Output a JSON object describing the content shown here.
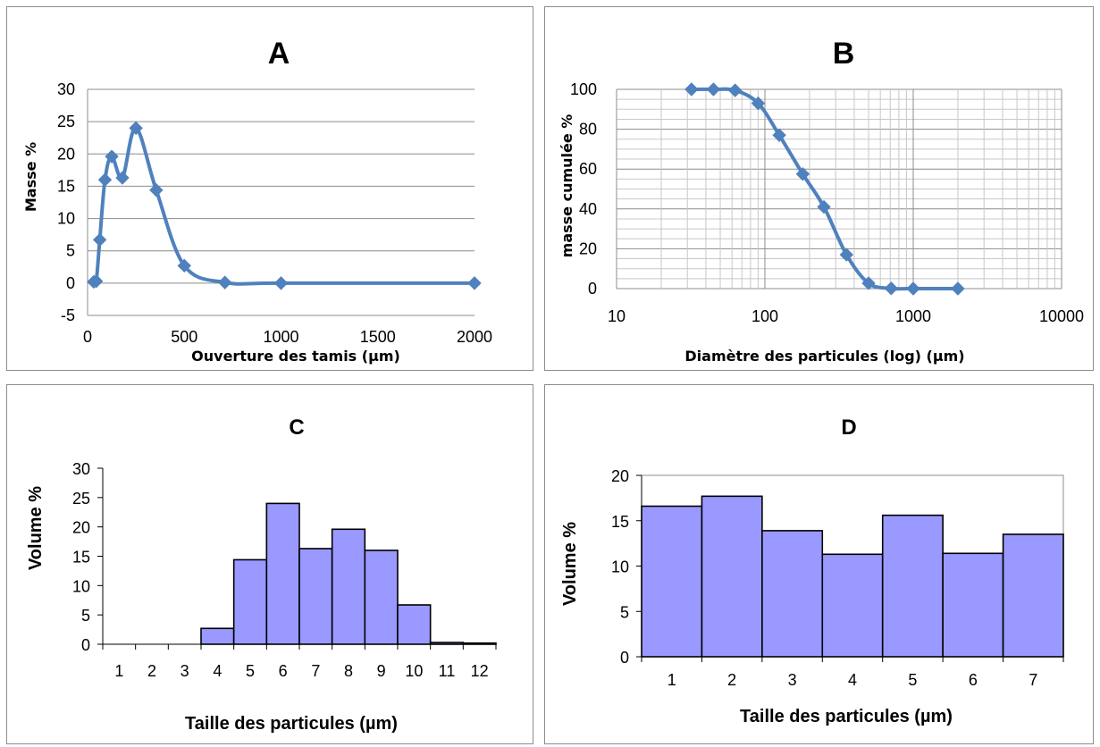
{
  "chart_data": [
    {
      "id": "A",
      "type": "line",
      "title": "A",
      "xlabel": "Ouverture des tamis (µm)",
      "ylabel": "Masse %",
      "xlim": [
        0,
        2000
      ],
      "ylim": [
        -5,
        30
      ],
      "xticks": [
        "0",
        "500",
        "1000",
        "1500",
        "2000"
      ],
      "yticks": [
        "-5",
        "0",
        "5",
        "10",
        "15",
        "20",
        "25",
        "30"
      ],
      "grid": "horizontal",
      "color": "#4f81bd",
      "series": [
        {
          "x": [
            32,
            45,
            63,
            90,
            125,
            180,
            250,
            355,
            500,
            710,
            1000,
            2000
          ],
          "y": [
            0.2,
            0.3,
            6.7,
            16.0,
            19.6,
            16.3,
            24.0,
            14.4,
            2.7,
            0.1,
            0.0,
            0.0
          ]
        }
      ]
    },
    {
      "id": "B",
      "type": "line",
      "title": "B",
      "xlabel": "Diamètre des particules (log) (µm)",
      "ylabel": "masse cumulée %",
      "xscale": "log",
      "xlim": [
        10,
        10000
      ],
      "ylim": [
        0,
        100
      ],
      "xticks": [
        "10",
        "100",
        "1000",
        "10000"
      ],
      "yticks": [
        "0",
        "20",
        "40",
        "60",
        "80",
        "100"
      ],
      "grid": "both",
      "color": "#4f81bd",
      "series": [
        {
          "x": [
            32,
            45,
            63,
            90,
            125,
            180,
            250,
            355,
            500,
            710,
            1000,
            2000
          ],
          "y": [
            100,
            100,
            99.5,
            93,
            77,
            57.5,
            41,
            17,
            2.7,
            0.1,
            0,
            0
          ]
        }
      ]
    },
    {
      "id": "C",
      "type": "bar",
      "title": "C",
      "xlabel": "Taille des particules (µm)",
      "ylabel": "Volume %",
      "ylim": [
        0,
        30
      ],
      "yticks": [
        "0",
        "5",
        "10",
        "15",
        "20",
        "25",
        "30"
      ],
      "categories": [
        "1",
        "2",
        "3",
        "4",
        "5",
        "6",
        "7",
        "8",
        "9",
        "10",
        "11",
        "12"
      ],
      "values": [
        0,
        0,
        0,
        2.7,
        14.4,
        24.0,
        16.3,
        19.6,
        16.0,
        6.7,
        0.3,
        0.2
      ],
      "color": "#9999ff"
    },
    {
      "id": "D",
      "type": "bar",
      "title": "D",
      "xlabel": "Taille des particules (µm)",
      "ylabel": "Volume %",
      "ylim": [
        0,
        20
      ],
      "yticks": [
        "0",
        "5",
        "10",
        "15",
        "20"
      ],
      "categories": [
        "1",
        "2",
        "3",
        "4",
        "5",
        "6",
        "7"
      ],
      "values": [
        16.6,
        17.7,
        13.9,
        11.3,
        15.6,
        11.4,
        13.5
      ],
      "color": "#9999ff"
    }
  ]
}
